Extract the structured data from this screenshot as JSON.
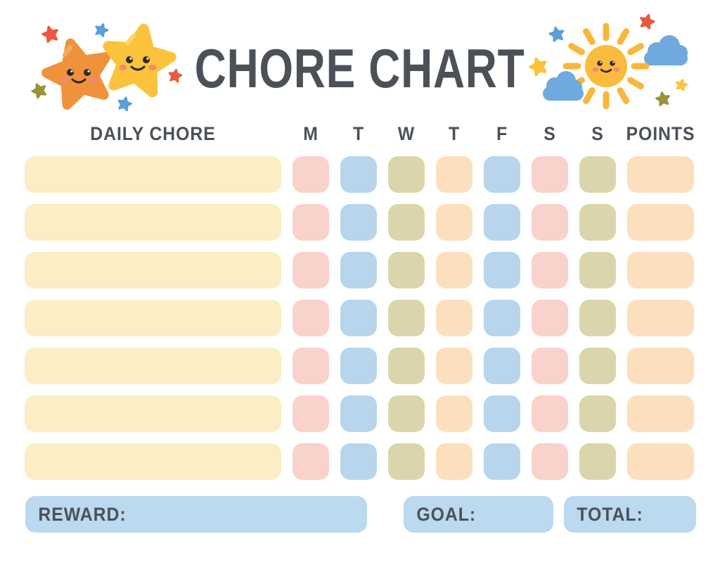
{
  "title": "CHORE CHART",
  "header": {
    "chore_label": "DAILY CHORE",
    "days": [
      "M",
      "T",
      "W",
      "T",
      "F",
      "S",
      "S"
    ],
    "points_label": "POINTS"
  },
  "table": {
    "row_count": 7,
    "chore_color": "cream",
    "day_color_pattern": [
      "pink",
      "blue",
      "olive",
      "peach",
      "blue",
      "pink",
      "olive"
    ],
    "points_color": "peach"
  },
  "footer": {
    "reward_label": "REWARD:",
    "goal_label": "GOAL:",
    "total_label": "TOTAL:"
  },
  "colors": {
    "cream": "#FBEEC5",
    "pink": "#F9D2CB",
    "blue": "#B9D5EC",
    "olive": "#DCD5AB",
    "peach": "#FCE0BE",
    "footer_blue": "#BBD9EF",
    "text": "#4B5157",
    "star_orange": "#F0923B",
    "star_orange_highlight": "#F5AB5E",
    "star_yellow": "#FBC33B",
    "star_yellow_highlight": "#FDD666",
    "star_red": "#E8593F",
    "star_blue": "#5B9FD8",
    "star_olive": "#9A9339",
    "sun_yellow": "#FBBB3D",
    "ray_yellow": "#F8B73B",
    "cloud_blue": "#6FA9DD",
    "face_dark": "#2F2A26",
    "cheek_pink": "#F0897A"
  },
  "decorations": {
    "left": "two-smiling-stars",
    "right": "smiling-sun-with-clouds"
  }
}
